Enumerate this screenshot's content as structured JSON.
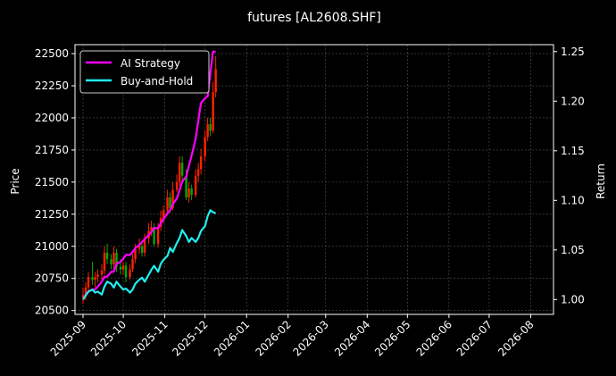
{
  "chart_data": {
    "type": "line",
    "title": "futures [AL2608.SHF]",
    "ylabel_left": "Price",
    "ylabel_right": "Return",
    "x_ticks": [
      "2025-09",
      "2025-10",
      "2025-11",
      "2025-12",
      "2026-01",
      "2026-02",
      "2026-03",
      "2026-04",
      "2026-05",
      "2026-06",
      "2026-07",
      "2026-08"
    ],
    "x_range": [
      "2025-08-26",
      "2026-08-18"
    ],
    "y_left_ticks": [
      20500,
      20750,
      21000,
      21250,
      21500,
      21750,
      22000,
      22250,
      22500
    ],
    "y_left_range": [
      20470,
      22570
    ],
    "y_right_ticks": [
      1.0,
      1.05,
      1.1,
      1.15,
      1.2,
      1.25
    ],
    "y_right_range": [
      0.985,
      1.257
    ],
    "grid": true,
    "legend_position": "top-left",
    "colors": {
      "up": "#ff2200",
      "down": "#00aa00",
      "ai": "#ff00ff",
      "bh": "#22eeee",
      "grid": "#555555",
      "background": "#000000",
      "axis": "#ffffff"
    },
    "series": [
      {
        "name": "AI Strategy",
        "axis": "right",
        "x": [
          "2025-09-01",
          "2025-09-03",
          "2025-09-05",
          "2025-09-08",
          "2025-09-10",
          "2025-09-12",
          "2025-09-15",
          "2025-09-17",
          "2025-09-19",
          "2025-09-22",
          "2025-09-24",
          "2025-09-26",
          "2025-09-29",
          "2025-10-01",
          "2025-10-03",
          "2025-10-06",
          "2025-10-08",
          "2025-10-10",
          "2025-10-13",
          "2025-10-15",
          "2025-10-17",
          "2025-10-20",
          "2025-10-22",
          "2025-10-24",
          "2025-10-27",
          "2025-10-29",
          "2025-10-31",
          "2025-11-03",
          "2025-11-05",
          "2025-11-07",
          "2025-11-10",
          "2025-11-12",
          "2025-11-14",
          "2025-11-17",
          "2025-11-19",
          "2025-11-21",
          "2025-11-24",
          "2025-11-26",
          "2025-11-28",
          "2025-12-01",
          "2025-12-03",
          "2025-12-05",
          "2025-12-07",
          "2025-12-09"
        ],
        "values": [
          1.0,
          1.005,
          1.008,
          1.01,
          1.01,
          1.013,
          1.018,
          1.023,
          1.023,
          1.028,
          1.028,
          1.036,
          1.038,
          1.041,
          1.045,
          1.045,
          1.048,
          1.052,
          1.055,
          1.058,
          1.061,
          1.065,
          1.068,
          1.072,
          1.072,
          1.077,
          1.081,
          1.087,
          1.09,
          1.096,
          1.102,
          1.11,
          1.119,
          1.124,
          1.135,
          1.145,
          1.162,
          1.18,
          1.198,
          1.203,
          1.205,
          1.228,
          1.25,
          1.25
        ]
      },
      {
        "name": "Buy-and-Hold",
        "axis": "right",
        "x": [
          "2025-09-01",
          "2025-09-03",
          "2025-09-05",
          "2025-09-08",
          "2025-09-10",
          "2025-09-12",
          "2025-09-15",
          "2025-09-17",
          "2025-09-19",
          "2025-09-22",
          "2025-09-24",
          "2025-09-26",
          "2025-09-29",
          "2025-10-01",
          "2025-10-03",
          "2025-10-06",
          "2025-10-08",
          "2025-10-10",
          "2025-10-13",
          "2025-10-15",
          "2025-10-17",
          "2025-10-20",
          "2025-10-22",
          "2025-10-24",
          "2025-10-27",
          "2025-10-29",
          "2025-10-31",
          "2025-11-03",
          "2025-11-05",
          "2025-11-07",
          "2025-11-10",
          "2025-11-12",
          "2025-11-14",
          "2025-11-17",
          "2025-11-19",
          "2025-11-21",
          "2025-11-24",
          "2025-11-26",
          "2025-11-28",
          "2025-12-01",
          "2025-12-03",
          "2025-12-05",
          "2025-12-07",
          "2025-12-09"
        ],
        "values": [
          1.0,
          1.004,
          1.008,
          1.01,
          1.007,
          1.008,
          1.005,
          1.013,
          1.018,
          1.016,
          1.012,
          1.018,
          1.013,
          1.01,
          1.011,
          1.007,
          1.01,
          1.016,
          1.02,
          1.022,
          1.018,
          1.025,
          1.03,
          1.034,
          1.028,
          1.036,
          1.04,
          1.044,
          1.052,
          1.048,
          1.057,
          1.062,
          1.07,
          1.064,
          1.058,
          1.062,
          1.058,
          1.062,
          1.069,
          1.074,
          1.084,
          1.09,
          1.088,
          1.087
        ]
      }
    ],
    "candles": {
      "axis": "left",
      "x": [
        "2025-09-01",
        "2025-09-03",
        "2025-09-05",
        "2025-09-08",
        "2025-09-10",
        "2025-09-12",
        "2025-09-15",
        "2025-09-17",
        "2025-09-19",
        "2025-09-22",
        "2025-09-24",
        "2025-09-26",
        "2025-09-29",
        "2025-10-01",
        "2025-10-03",
        "2025-10-06",
        "2025-10-08",
        "2025-10-10",
        "2025-10-13",
        "2025-10-15",
        "2025-10-17",
        "2025-10-20",
        "2025-10-22",
        "2025-10-24",
        "2025-10-27",
        "2025-10-29",
        "2025-10-31",
        "2025-11-03",
        "2025-11-05",
        "2025-11-07",
        "2025-11-10",
        "2025-11-12",
        "2025-11-14",
        "2025-11-17",
        "2025-11-19",
        "2025-11-21",
        "2025-11-24",
        "2025-11-26",
        "2025-11-28",
        "2025-12-01",
        "2025-12-03",
        "2025-12-05",
        "2025-12-07",
        "2025-12-09"
      ],
      "open": [
        20600,
        20620,
        20680,
        20760,
        20740,
        20760,
        20780,
        20810,
        20950,
        20900,
        20860,
        20950,
        20840,
        20820,
        20850,
        20760,
        20820,
        20900,
        20980,
        21000,
        20950,
        21060,
        21120,
        21150,
        21020,
        21150,
        21220,
        21280,
        21380,
        21300,
        21440,
        21500,
        21650,
        21550,
        21380,
        21450,
        21400,
        21550,
        21600,
        21700,
        21850,
        21950,
        21900,
        22200
      ],
      "close": [
        20620,
        20680,
        20760,
        20740,
        20760,
        20780,
        20810,
        20950,
        20900,
        20860,
        20950,
        20840,
        20820,
        20850,
        20760,
        20820,
        20900,
        20980,
        21000,
        20950,
        21060,
        21120,
        21150,
        21020,
        21150,
        21220,
        21280,
        21380,
        21300,
        21440,
        21500,
        21650,
        21550,
        21380,
        21450,
        21400,
        21550,
        21600,
        21700,
        21850,
        21950,
        21900,
        22200,
        22380
      ],
      "high": [
        20680,
        20720,
        20800,
        20880,
        20800,
        20820,
        20860,
        21000,
        21020,
        20940,
        21000,
        20980,
        20900,
        20880,
        20880,
        20860,
        20940,
        21020,
        21060,
        21040,
        21100,
        21180,
        21200,
        21180,
        21180,
        21280,
        21320,
        21440,
        21420,
        21500,
        21560,
        21700,
        21700,
        21600,
        21500,
        21480,
        21600,
        21650,
        21760,
        21900,
        22000,
        22000,
        22280,
        22480
      ],
      "low": [
        20550,
        20580,
        20640,
        20700,
        20680,
        20720,
        20740,
        20780,
        20860,
        20820,
        20820,
        20800,
        20780,
        20780,
        20720,
        20740,
        20800,
        20870,
        20940,
        20920,
        20920,
        21020,
        21080,
        21000,
        20990,
        21120,
        21180,
        21240,
        21260,
        21280,
        21420,
        21470,
        21520,
        21360,
        21340,
        21360,
        21380,
        21500,
        21560,
        21660,
        21820,
        21860,
        21880,
        22160
      ]
    },
    "legend": [
      {
        "name": "AI Strategy",
        "color": "#ff00ff"
      },
      {
        "name": "Buy-and-Hold",
        "color": "#22eeee"
      }
    ]
  }
}
